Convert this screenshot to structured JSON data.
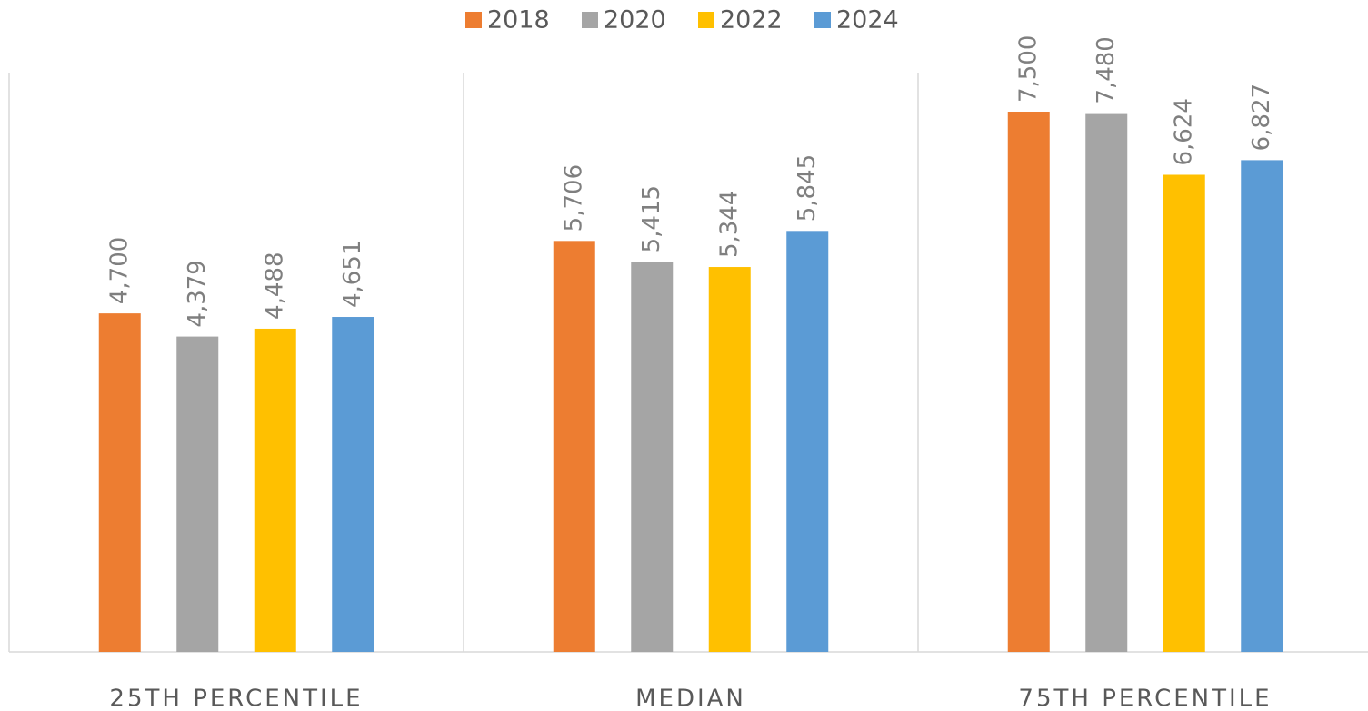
{
  "chart_data": {
    "type": "bar",
    "categories": [
      "25TH PERCENTILE",
      "MEDIAN",
      "75TH PERCENTILE"
    ],
    "series": [
      {
        "name": "2018",
        "color": "#ed7d31",
        "values": [
          4700,
          5706,
          7500
        ],
        "value_labels": [
          "4,700",
          "5,706",
          "7,500"
        ]
      },
      {
        "name": "2020",
        "color": "#a5a5a5",
        "values": [
          4379,
          5415,
          7480
        ],
        "value_labels": [
          "4,379",
          "5,415",
          "7,480"
        ]
      },
      {
        "name": "2022",
        "color": "#ffc000",
        "values": [
          4488,
          5344,
          6624
        ],
        "value_labels": [
          "4,488",
          "5,344",
          "6,624"
        ]
      },
      {
        "name": "2024",
        "color": "#5b9bd5",
        "values": [
          4651,
          5845,
          6827
        ],
        "value_labels": [
          "4,651",
          "5,845",
          "6,827"
        ]
      }
    ]
  }
}
